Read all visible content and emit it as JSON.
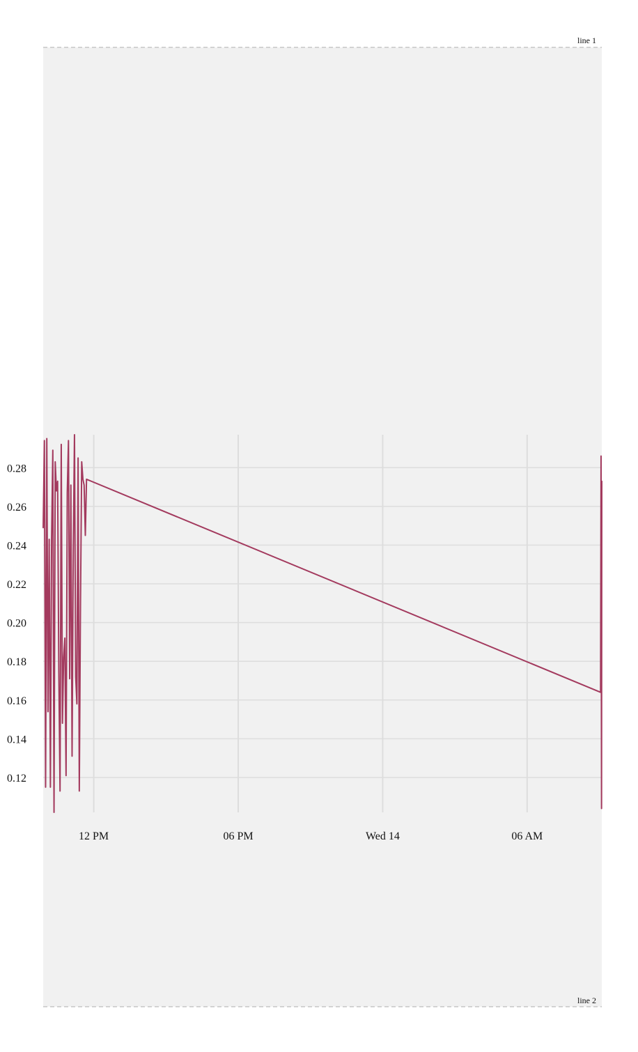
{
  "chart_data": {
    "type": "line",
    "title": "",
    "xlabel": "",
    "ylabel": "",
    "x_ticks": [
      "12 PM",
      "06 PM",
      "Wed 14",
      "06 AM"
    ],
    "y_ticks": [
      "0.12",
      "0.14",
      "0.16",
      "0.18",
      "0.20",
      "0.22",
      "0.24",
      "0.26",
      "0.28"
    ],
    "grid": true,
    "guides": [
      {
        "label": "line 1"
      },
      {
        "label": "line 2"
      }
    ],
    "xlim_hours": [
      9.9,
      33.1
    ],
    "ylim": [
      0.102,
      0.297
    ],
    "series": [
      {
        "color": "#a33a5e",
        "x_hours": [
          9.9,
          9.95,
          10.0,
          10.05,
          10.1,
          10.15,
          10.2,
          10.25,
          10.3,
          10.35,
          10.4,
          10.45,
          10.5,
          10.55,
          10.6,
          10.65,
          10.7,
          10.75,
          10.8,
          10.85,
          10.9,
          10.95,
          11.0,
          11.05,
          11.1,
          11.15,
          11.2,
          11.25,
          11.3,
          11.35,
          11.4,
          11.45,
          11.5,
          11.55,
          11.6,
          11.65,
          11.7,
          33.05,
          33.07,
          33.09,
          33.1
        ],
        "values": [
          0.249,
          0.294,
          0.115,
          0.295,
          0.154,
          0.243,
          0.115,
          0.244,
          0.289,
          0.102,
          0.283,
          0.268,
          0.273,
          0.174,
          0.113,
          0.292,
          0.148,
          0.182,
          0.192,
          0.121,
          0.267,
          0.294,
          0.171,
          0.271,
          0.131,
          0.238,
          0.297,
          0.172,
          0.158,
          0.285,
          0.113,
          0.211,
          0.283,
          0.274,
          0.271,
          0.245,
          0.274,
          0.164,
          0.286,
          0.104,
          0.273
        ]
      }
    ]
  }
}
